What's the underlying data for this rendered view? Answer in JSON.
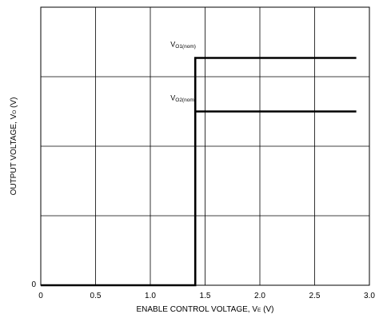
{
  "chart_data": {
    "type": "line",
    "title": "",
    "xlabel": {
      "main": "ENABLE CONTROL VOLTAGE, V",
      "sub": "E",
      "tail": " (V)"
    },
    "ylabel": {
      "main": "OUTPUT VOLTAGE, V",
      "sub": "O",
      "tail": " (V)"
    },
    "xlim": [
      0,
      3.0
    ],
    "ylim": [
      0,
      4
    ],
    "x_ticks": [
      0,
      0.5,
      1.0,
      1.5,
      2.0,
      2.5,
      3.0
    ],
    "x_tick_labels": [
      "0",
      "0.5",
      "1.0",
      "1.5",
      "2.0",
      "2.5",
      "3.0"
    ],
    "y_ticks": [
      0
    ],
    "y_tick_labels": [
      "0"
    ],
    "y_gridlines": [
      1,
      2,
      3
    ],
    "grid": true,
    "series": [
      {
        "values_note": "",
        "x": [
          0,
          1.41,
          1.41,
          2.88
        ],
        "y": [
          0,
          0,
          3.27,
          3.27
        ],
        "color": "#000000"
      },
      {
        "x": [
          1.41,
          2.88
        ],
        "y": [
          2.5,
          2.5
        ],
        "color": "#000000"
      }
    ],
    "annotations": [
      {
        "main": "V",
        "sub": "O1(nom)",
        "x": 1.3,
        "y": 3.43
      },
      {
        "main": "V",
        "sub": "O2(nom)",
        "x": 1.3,
        "y": 2.66
      }
    ]
  }
}
